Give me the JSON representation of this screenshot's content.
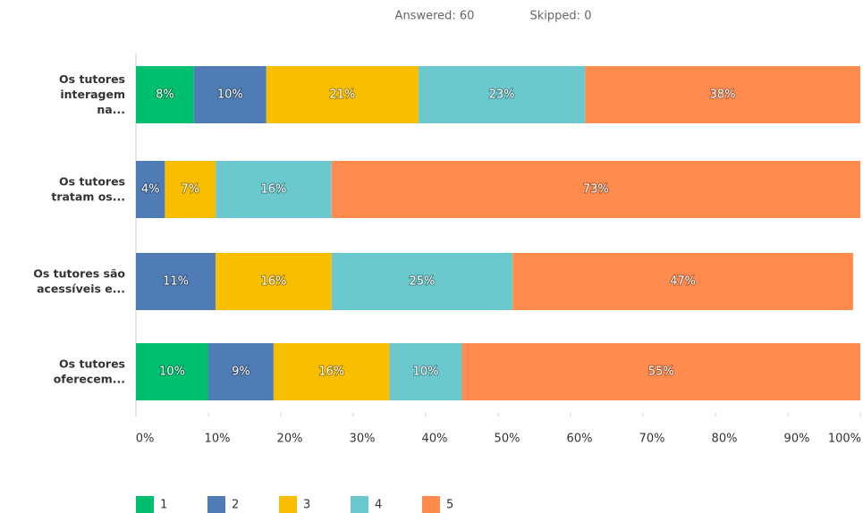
{
  "chart_data": {
    "type": "stacked_barh",
    "subtitle": [
      "Answered: 60",
      "Skipped: 0"
    ],
    "categories": [
      "Os tutores\ninteragem\nna...",
      "Os tutores\ntratam os...",
      "Os tutores são\nacessíveis e...",
      "Os tutores\noferecem..."
    ],
    "series": [
      {
        "name": "1",
        "color": "#00bf6f",
        "values": [
          8,
          0,
          0,
          10
        ],
        "value_labels": [
          "8%",
          null,
          null,
          "10%"
        ]
      },
      {
        "name": "2",
        "color": "#507cb6",
        "values": [
          10,
          4,
          11,
          9
        ],
        "value_labels": [
          "10%",
          "4%",
          "11%",
          "9%"
        ]
      },
      {
        "name": "3",
        "color": "#f9be00",
        "values": [
          21,
          7,
          16,
          16
        ],
        "value_labels": [
          "21%",
          "7%",
          "16%",
          "16%"
        ]
      },
      {
        "name": "4",
        "color": "#6bc8cd",
        "values": [
          23,
          16,
          25,
          10
        ],
        "value_labels": [
          "23%",
          "16%",
          "25%",
          "10%"
        ]
      },
      {
        "name": "5",
        "color": "#ff8b4f",
        "values": [
          38,
          73,
          47,
          55
        ],
        "value_labels": [
          "38%",
          "73%",
          "47%",
          "55%"
        ]
      }
    ],
    "xlim": [
      0,
      100
    ],
    "xticks": [
      {
        "value": 0,
        "label": "0%"
      },
      {
        "value": 10,
        "label": "10%"
      },
      {
        "value": 20,
        "label": "20%"
      },
      {
        "value": 30,
        "label": "30%"
      },
      {
        "value": 40,
        "label": "40%"
      },
      {
        "value": 50,
        "label": "50%"
      },
      {
        "value": 60,
        "label": "60%"
      },
      {
        "value": 70,
        "label": "70%"
      },
      {
        "value": 80,
        "label": "80%"
      },
      {
        "value": 90,
        "label": "90%"
      },
      {
        "value": 100,
        "label": "100%"
      }
    ],
    "grid": false,
    "legend": "bottom"
  }
}
